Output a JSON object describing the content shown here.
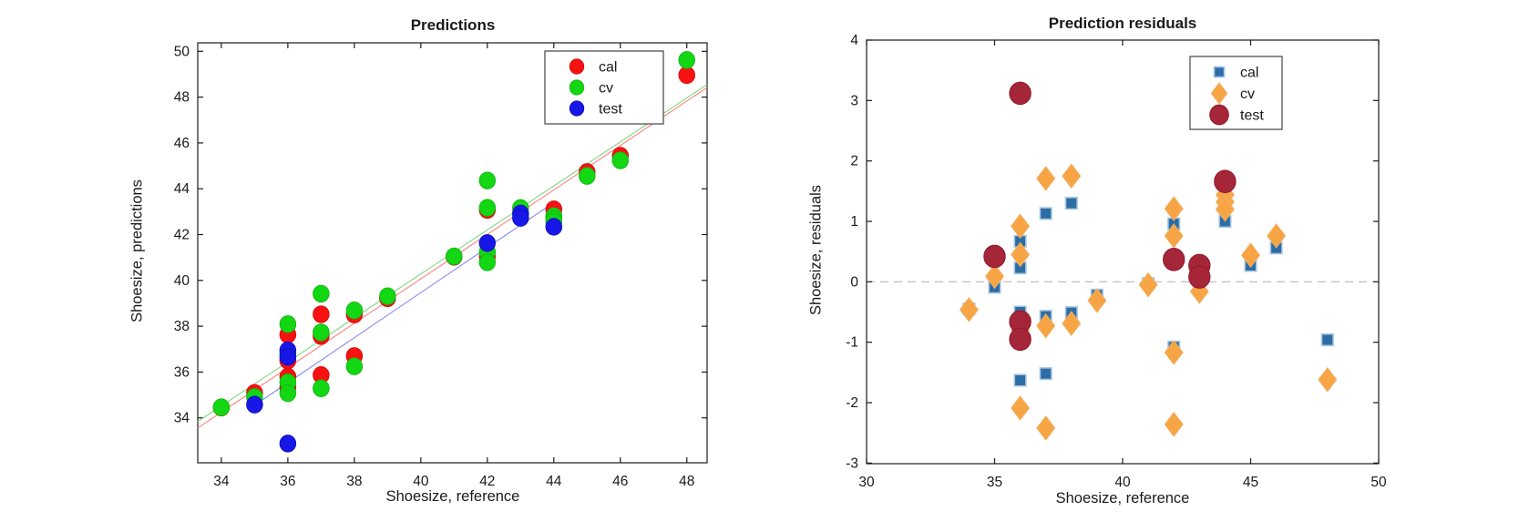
{
  "figure": {
    "background": "#ffffff",
    "text_color": "#1a1a1a",
    "axis_color": "#1a1a1a"
  },
  "chart_data": [
    {
      "type": "scatter",
      "title": "Predictions",
      "xlabel": "Shoesize, reference",
      "ylabel": "Shoesize, predictions",
      "xlim": [
        33.29,
        48.61
      ],
      "ylim": [
        32.04,
        50.37
      ],
      "xticks": [
        34,
        36,
        38,
        40,
        42,
        44,
        46,
        48
      ],
      "yticks": [
        34,
        36,
        38,
        40,
        42,
        44,
        46,
        48,
        50
      ],
      "grid": false,
      "legend": {
        "position": "top-right",
        "entries": [
          {
            "label": "cal",
            "marker": "circle",
            "color": "#f81111"
          },
          {
            "label": "cv",
            "marker": "circle",
            "color": "#14d714"
          },
          {
            "label": "test",
            "marker": "circle",
            "color": "#1717e8"
          }
        ]
      },
      "fit_lines": [
        {
          "name": "cal-fit",
          "color": "#fd8080",
          "x": [
            33.29,
            48.61
          ],
          "y": [
            33.56,
            48.42
          ]
        },
        {
          "name": "cv-fit",
          "color": "#7fd87f",
          "x": [
            33.29,
            48.61
          ],
          "y": [
            33.84,
            48.55
          ]
        },
        {
          "name": "test-fit",
          "color": "#8787ef",
          "x": [
            35.0,
            44.05
          ],
          "y": [
            34.55,
            43.45
          ]
        }
      ],
      "series": [
        {
          "name": "cal",
          "marker": "circle",
          "fill": "#f81111",
          "stroke": "#d90c0c",
          "size": 9.2,
          "points": [
            [
              34,
              34.45
            ],
            [
              35,
              35.09
            ],
            [
              36,
              37.63
            ],
            [
              36,
              36.5
            ],
            [
              36,
              35.8
            ],
            [
              36,
              35.33
            ],
            [
              37,
              38.52
            ],
            [
              37,
              37.57
            ],
            [
              37,
              35.87
            ],
            [
              38,
              38.51
            ],
            [
              38,
              36.7
            ],
            [
              39,
              39.22
            ],
            [
              41,
              41.03
            ],
            [
              42,
              43.08
            ],
            [
              42,
              41.04
            ],
            [
              44,
              43.1
            ],
            [
              45,
              44.73
            ],
            [
              46,
              45.44
            ],
            [
              48,
              48.96
            ]
          ]
        },
        {
          "name": "cv",
          "marker": "circle",
          "fill": "#14d714",
          "stroke": "#0fba0f",
          "size": 9.2,
          "points": [
            [
              34,
              34.46
            ],
            [
              35,
              34.91
            ],
            [
              36,
              38.09
            ],
            [
              36,
              36.8
            ],
            [
              36,
              35.55
            ],
            [
              36,
              35.08
            ],
            [
              37,
              39.42
            ],
            [
              37,
              37.73
            ],
            [
              37,
              35.29
            ],
            [
              38,
              38.69
            ],
            [
              38,
              36.25
            ],
            [
              39,
              39.31
            ],
            [
              41,
              41.05
            ],
            [
              42,
              44.36
            ],
            [
              42,
              43.17
            ],
            [
              42,
              41.24
            ],
            [
              42,
              40.79
            ],
            [
              43,
              43.16
            ],
            [
              44,
              42.8
            ],
            [
              44,
              42.68
            ],
            [
              44,
              42.56
            ],
            [
              45,
              44.56
            ],
            [
              46,
              45.24
            ],
            [
              48,
              49.62
            ]
          ]
        },
        {
          "name": "test",
          "marker": "circle",
          "fill": "#1717e8",
          "stroke": "#1111bf",
          "size": 9.2,
          "points": [
            [
              35,
              34.58
            ],
            [
              36,
              36.95
            ],
            [
              36,
              36.66
            ],
            [
              36,
              32.88
            ],
            [
              42,
              41.63
            ],
            [
              43,
              42.92
            ],
            [
              43,
              42.73
            ],
            [
              44,
              42.34
            ]
          ]
        }
      ]
    },
    {
      "type": "scatter",
      "title": "Prediction residuals",
      "xlabel": "Shoesize, reference",
      "ylabel": "Shoesize, residuals",
      "xlim": [
        30,
        50
      ],
      "ylim": [
        -3.01,
        4.0
      ],
      "xticks": [
        30,
        35,
        40,
        45,
        50
      ],
      "yticks": [
        -3,
        -2,
        -1,
        0,
        1,
        2,
        3,
        4
      ],
      "grid": false,
      "zero_line": {
        "y": 0,
        "style": "dashed",
        "color": "#b8b8b8"
      },
      "legend": {
        "position": "top-right",
        "entries": [
          {
            "label": "cal",
            "marker": "square",
            "color": "#2d6da6"
          },
          {
            "label": "cv",
            "marker": "diamond",
            "color": "#f7a544"
          },
          {
            "label": "test",
            "marker": "circle",
            "color": "#a52639"
          }
        ]
      },
      "fit_lines": [],
      "series": [
        {
          "name": "cal",
          "marker": "square",
          "fill": "#2d6da6",
          "stroke": "#a6c6e0",
          "size": 6.3,
          "points": [
            [
              34,
              -0.45
            ],
            [
              35,
              -0.09
            ],
            [
              36,
              0.67
            ],
            [
              36,
              0.23
            ],
            [
              36,
              -0.5
            ],
            [
              36,
              -1.63
            ],
            [
              37,
              1.13
            ],
            [
              37,
              -0.57
            ],
            [
              37,
              -1.52
            ],
            [
              38,
              1.3
            ],
            [
              38,
              -0.51
            ],
            [
              39,
              -0.22
            ],
            [
              41,
              -0.03
            ],
            [
              42,
              0.96
            ],
            [
              42,
              -1.08
            ],
            [
              44,
              1.0
            ],
            [
              45,
              0.27
            ],
            [
              46,
              0.56
            ],
            [
              48,
              -0.96
            ]
          ]
        },
        {
          "name": "cv",
          "marker": "diamond",
          "fill": "#f7a544",
          "stroke": "#f0ae62",
          "size": 13,
          "points": [
            [
              34,
              -0.46
            ],
            [
              35,
              0.09
            ],
            [
              36,
              0.92
            ],
            [
              36,
              0.45
            ],
            [
              36,
              -0.8
            ],
            [
              36,
              -2.09
            ],
            [
              37,
              1.71
            ],
            [
              37,
              -0.73
            ],
            [
              37,
              -2.42
            ],
            [
              38,
              1.75
            ],
            [
              38,
              -0.69
            ],
            [
              39,
              -0.31
            ],
            [
              41,
              -0.05
            ],
            [
              42,
              1.21
            ],
            [
              42,
              0.76
            ],
            [
              42,
              -1.17
            ],
            [
              42,
              -2.36
            ],
            [
              43,
              -0.16
            ],
            [
              44,
              1.44
            ],
            [
              44,
              1.32
            ],
            [
              44,
              1.2
            ],
            [
              45,
              0.44
            ],
            [
              46,
              0.76
            ],
            [
              48,
              -1.62
            ]
          ]
        },
        {
          "name": "test",
          "marker": "circle",
          "fill": "#a52639",
          "stroke": "#93152a",
          "size": 12.3,
          "points": [
            [
              35,
              0.42
            ],
            [
              36,
              3.12
            ],
            [
              36,
              -0.66
            ],
            [
              36,
              -0.95
            ],
            [
              42,
              0.37
            ],
            [
              43,
              0.27
            ],
            [
              43,
              0.08
            ],
            [
              44,
              1.66
            ]
          ]
        }
      ]
    }
  ]
}
